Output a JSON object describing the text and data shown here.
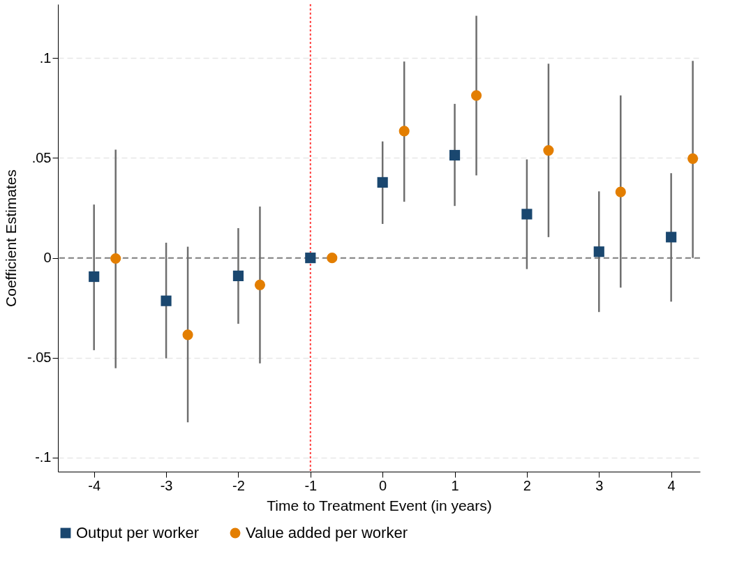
{
  "chart_data": {
    "type": "scatter",
    "xlabel": "Time to Treatment Event (in years)",
    "ylabel": "Coefficient Estimates",
    "xlim": [
      -4.5,
      4.4
    ],
    "xticks": [
      -4,
      -3,
      -2,
      -1,
      0,
      1,
      2,
      3,
      4
    ],
    "ylim": [
      -0.107,
      0.127
    ],
    "yticks": [
      {
        "value": -0.1,
        "label": "-.1"
      },
      {
        "value": -0.05,
        "label": "-.05"
      },
      0,
      {
        "value": 0.05,
        "label": ".05"
      },
      {
        "value": 0.1,
        "label": ".1"
      }
    ],
    "grid": "y",
    "legend": "bottom",
    "ref_lines": [
      {
        "axis": "x",
        "value": -1,
        "color": "#ff4040",
        "line_style": "dotted"
      },
      {
        "axis": "y",
        "value": 0,
        "color": "#808080",
        "line_style": "dashed"
      }
    ],
    "series": [
      {
        "name": "Output per worker",
        "color": "#1a476f",
        "marker": "square",
        "x": [
          -4,
          -3,
          -2,
          -1,
          0,
          1,
          2,
          3,
          4
        ],
        "values": [
          -0.0094,
          -0.0215,
          -0.009,
          0,
          0.0378,
          0.0514,
          0.0219,
          0.0031,
          0.0104
        ],
        "errors": [
          [
            -0.0462,
            0.0267
          ],
          [
            -0.0503,
            0.0076
          ],
          [
            -0.033,
            0.0149
          ],
          null,
          [
            0.017,
            0.0583
          ],
          [
            0.026,
            0.0771
          ],
          [
            -0.0056,
            0.0493
          ],
          [
            -0.0271,
            0.0333
          ],
          [
            -0.0219,
            0.0424
          ]
        ]
      },
      {
        "name": "Value added per worker",
        "color": "#e37e00",
        "marker": "circle",
        "x": [
          -3.7,
          -2.7,
          -1.7,
          -0.7,
          0.3,
          1.3,
          2.3,
          3.3,
          4.3
        ],
        "values": [
          -0.0003,
          -0.0385,
          -0.0135,
          0,
          0.0635,
          0.0813,
          0.0538,
          0.033,
          0.0497
        ],
        "errors": [
          [
            -0.0552,
            0.0542
          ],
          [
            -0.0823,
            0.0056
          ],
          [
            -0.0528,
            0.0257
          ],
          null,
          [
            0.0281,
            0.0983
          ],
          [
            0.0413,
            0.1212
          ],
          [
            0.0104,
            0.0972
          ],
          [
            -0.0149,
            0.0813
          ],
          [
            0.0,
            0.0986
          ]
        ]
      }
    ]
  }
}
